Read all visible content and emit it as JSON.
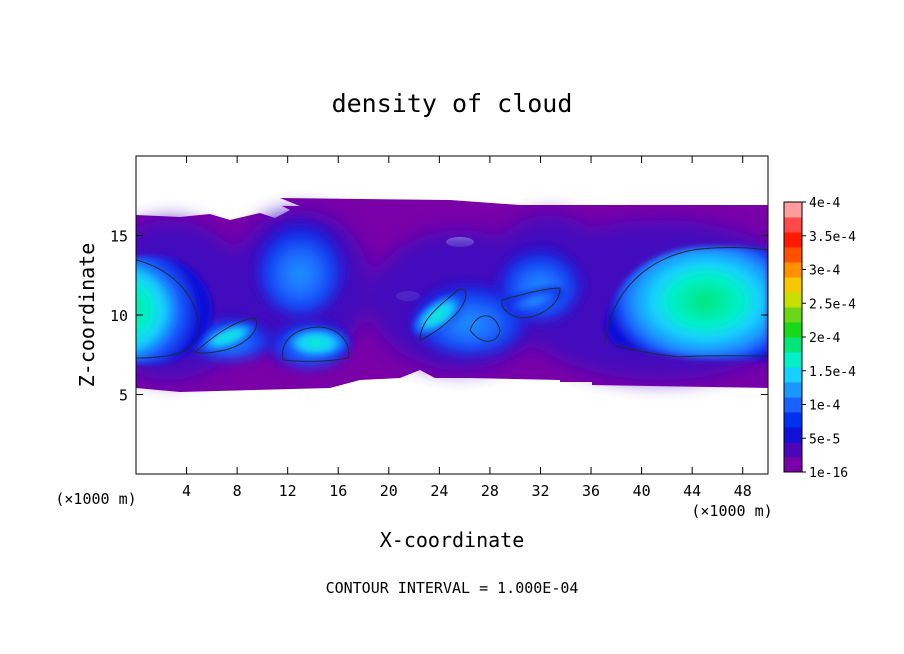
{
  "chart_data": {
    "type": "heatmap",
    "title": "density of cloud",
    "xlabel": "X-coordinate",
    "ylabel": "Z-coordinate",
    "x_unit": "(×1000 m)",
    "y_unit": "(×1000 m)",
    "footer": "CONTOUR INTERVAL = 1.000E-04",
    "xlim": [
      0,
      50
    ],
    "ylim": [
      0,
      20
    ],
    "x_ticks": [
      4,
      8,
      12,
      16,
      20,
      24,
      28,
      32,
      36,
      40,
      44,
      48
    ],
    "x_tick_labels": [
      "4",
      "8",
      "12",
      "16",
      "20",
      "24",
      "28",
      "32",
      "36",
      "40",
      "44",
      "48"
    ],
    "y_ticks": [
      5,
      10,
      15
    ],
    "y_tick_labels": [
      "5",
      "10",
      "15"
    ],
    "colorbar": {
      "ticks": [
        1e-16,
        5e-05,
        0.0001,
        0.00015,
        0.0002,
        0.00025,
        0.0003,
        0.00035,
        0.0004
      ],
      "tick_labels": [
        "1e-16",
        "5e-5",
        "1e-4",
        "1.5e-4",
        "2e-4",
        "2.5e-4",
        "3e-4",
        "3.5e-4",
        "4e-4"
      ],
      "colors": [
        "#7a00a8",
        "#4a06b8",
        "#1010d8",
        "#0030f0",
        "#1a60ff",
        "#1a98ff",
        "#18d0ff",
        "#00f0c8",
        "#00e67a",
        "#18d818",
        "#6ad818",
        "#c8e000",
        "#f5c800",
        "#ff9000",
        "#ff5000",
        "#ff1a00",
        "#ff4848",
        "#ff9c9c"
      ]
    },
    "contour_interval": 0.0001,
    "cloud_features": [
      {
        "x": [
          0,
          7.5
        ],
        "z": [
          5.5,
          13.5
        ],
        "peak": 0.00019
      },
      {
        "x": [
          4.5,
          9.5
        ],
        "z": [
          7,
          10.5
        ],
        "peak": 0.00016
      },
      {
        "x": [
          11.5,
          17
        ],
        "z": [
          6.5,
          16
        ],
        "peak": 0.00015
      },
      {
        "x": [
          20,
          27
        ],
        "z": [
          8,
          12.5
        ],
        "peak": 0.00014
      },
      {
        "x": [
          27,
          34
        ],
        "z": [
          8,
          14
        ],
        "peak": 0.00012
      },
      {
        "x": [
          36,
          50
        ],
        "z": [
          5.5,
          15
        ],
        "peak": 0.0002
      }
    ]
  }
}
